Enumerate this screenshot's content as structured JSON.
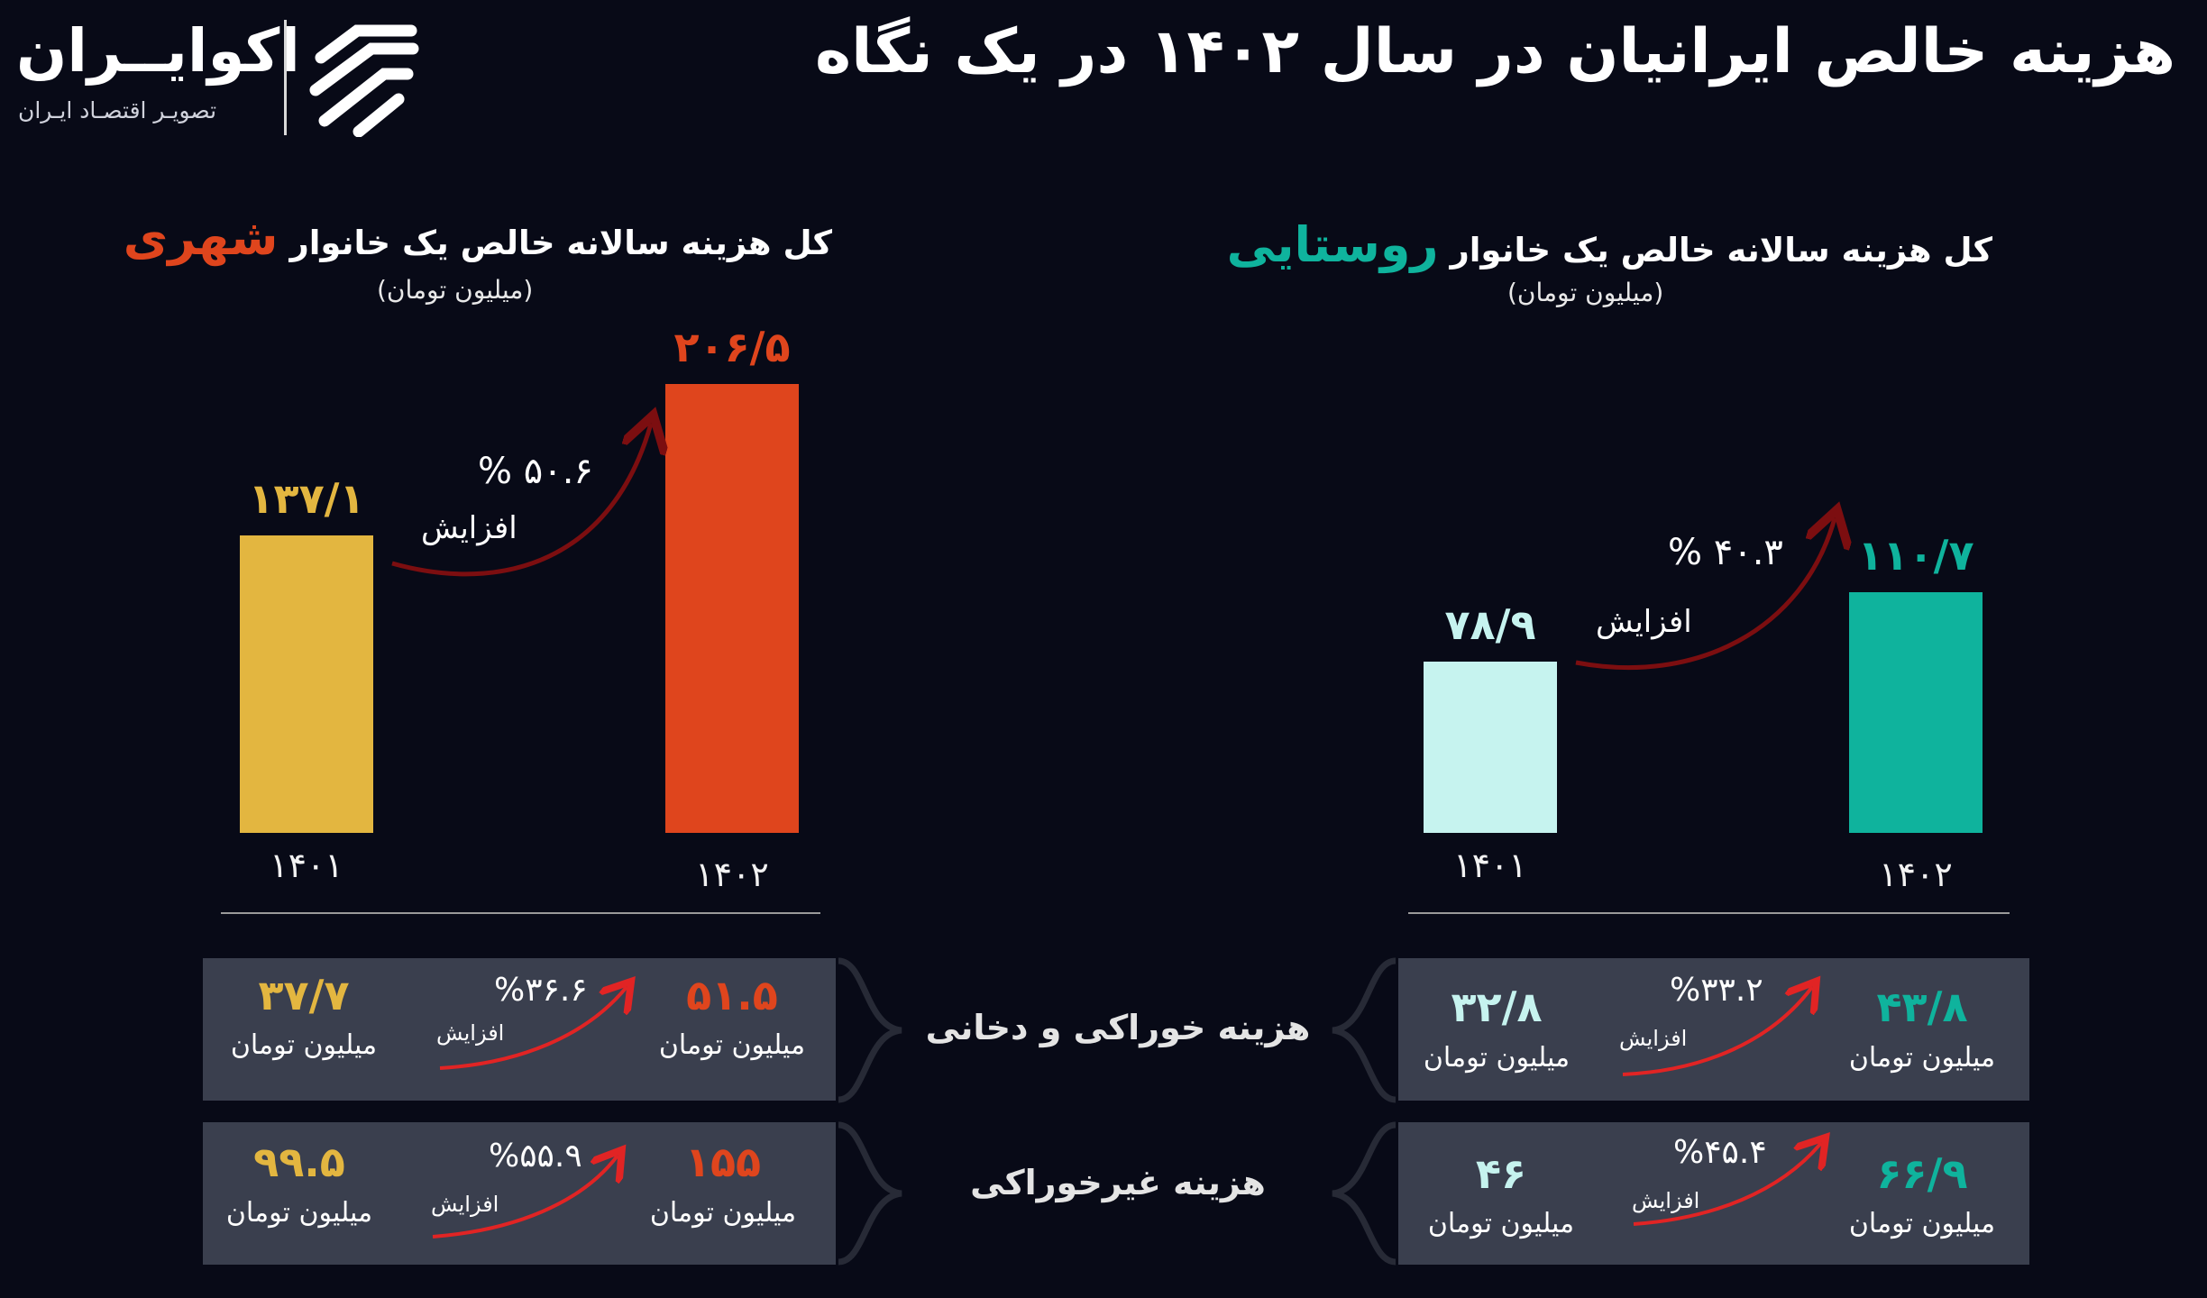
{
  "header": {
    "title": "هزینه خالص ایرانیان در سال ۱۴۰۲ در یک نگاه",
    "logo_name": "اکوایــران",
    "logo_tagline": "تصویـر اقتصـاد ایـران"
  },
  "colors": {
    "urban_1401": "#e3b640",
    "urban_1402": "#df451d",
    "rural_1401": "#c6f3ef",
    "rural_1402": "#0fb39d",
    "increase_arrow": "#e12424",
    "panel_bg": "#3a3f4e"
  },
  "chart_data": [
    {
      "type": "bar",
      "title_prefix": "کل هزینه سالانه خالص یک خانوار",
      "title_highlight": "شهری",
      "unit": "(میلیون تومان)",
      "categories": [
        "۱۴۰۱",
        "۱۴۰۲"
      ],
      "values": [
        137.1,
        206.5
      ],
      "value_labels": [
        "۱۳۷/۱",
        "۲۰۶/۵"
      ],
      "colors": [
        "#e3b640",
        "#df451d"
      ],
      "change_percent": "% ۵۰.۶",
      "change_label": "افزایش"
    },
    {
      "type": "bar",
      "title_prefix": "کل هزینه سالانه خالص یک خانوار",
      "title_highlight": "روستایی",
      "unit": "(میلیون تومان)",
      "categories": [
        "۱۴۰۱",
        "۱۴۰۲"
      ],
      "values": [
        78.9,
        110.7
      ],
      "value_labels": [
        "۷۸/۹",
        "۱۱۰/۷"
      ],
      "colors": [
        "#c6f3ef",
        "#0fb39d"
      ],
      "change_percent": "% ۴۰.۳",
      "change_label": "افزایش"
    }
  ],
  "rows": [
    {
      "label": "هزینه خوراکی و دخانی",
      "urban": {
        "v1401": "۳۷/۷",
        "v1402": "۵۱.۵",
        "pct": "%۳۶.۶"
      },
      "rural": {
        "v1401": "۳۲/۸",
        "v1402": "۴۳/۸",
        "pct": "%۳۳.۲"
      }
    },
    {
      "label": "هزینه غیرخوراکی",
      "urban": {
        "v1401": "۹۹.۵",
        "v1402": "۱۵۵",
        "pct": "%۵۵.۹"
      },
      "rural": {
        "v1401": "۴۶",
        "v1402": "۶۶/۹",
        "pct": "%۴۵.۴"
      }
    }
  ],
  "labels": {
    "unit_short": "میلیون تومان",
    "increase": "افزایش"
  }
}
